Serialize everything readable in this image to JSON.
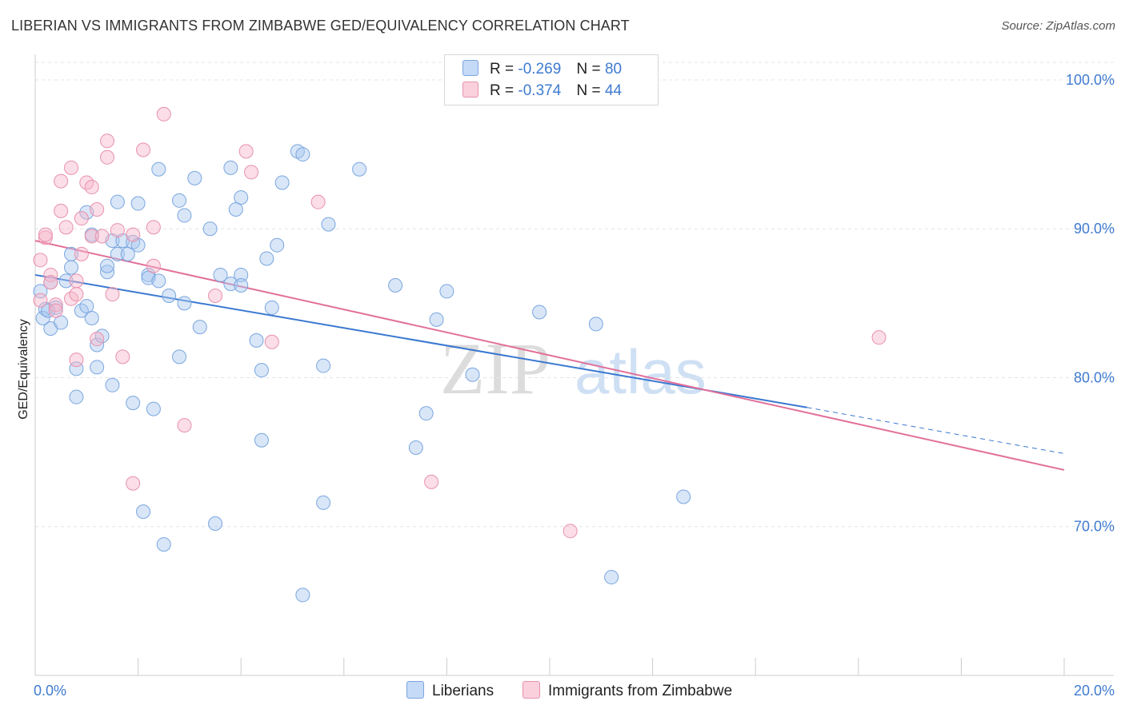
{
  "header": {
    "title": "LIBERIAN VS IMMIGRANTS FROM ZIMBABWE GED/EQUIVALENCY CORRELATION CHART",
    "source": "Source: ZipAtlas.com"
  },
  "watermark": {
    "zip": "ZIP",
    "atlas": "atlas"
  },
  "legend_top": [
    {
      "r_label": "R =",
      "r_value": "-0.269",
      "n_label": "N =",
      "n_value": "80",
      "color": "#a9c8f0"
    },
    {
      "r_label": "R =",
      "r_value": "-0.374",
      "n_label": "N =",
      "n_value": "44",
      "color": "#f6b6c9"
    }
  ],
  "legend_bottom": [
    {
      "label": "Liberians",
      "color": "#a9c8f0"
    },
    {
      "label": "Immigrants from Zimbabwe",
      "color": "#f6b6c9"
    }
  ],
  "chart_data": {
    "type": "scatter",
    "title": "LIBERIAN VS IMMIGRANTS FROM ZIMBABWE GED/EQUIVALENCY CORRELATION CHART",
    "ylabel": "GED/Equivalency",
    "xlabel": "",
    "xlim": [
      0,
      20
    ],
    "ylim": [
      60,
      101.5
    ],
    "x_tick_labels": [
      "0.0%",
      "20.0%"
    ],
    "y_ticks": [
      70,
      80,
      90,
      100
    ],
    "y_tick_labels": [
      "70.0%",
      "80.0%",
      "90.0%",
      "100.0%"
    ],
    "grid": true,
    "series": [
      {
        "name": "Liberians",
        "color": "#a9c8f0",
        "stroke": "#7aa6de",
        "trend": {
          "x0": 0,
          "y0": 86.9,
          "x1": 15,
          "y1": 78.0,
          "dash_to_x": 20,
          "dash_to_y": 74.9,
          "color": "#3a78d0"
        },
        "points": [
          [
            0.1,
            85.8
          ],
          [
            0.2,
            84.6
          ],
          [
            0.3,
            86.4
          ],
          [
            0.3,
            83.3
          ],
          [
            0.4,
            84.7
          ],
          [
            0.5,
            83.7
          ],
          [
            0.6,
            86.5
          ],
          [
            0.7,
            87.4
          ],
          [
            0.7,
            88.3
          ],
          [
            0.8,
            80.6
          ],
          [
            0.8,
            78.7
          ],
          [
            0.9,
            84.5
          ],
          [
            1.0,
            84.8
          ],
          [
            1.0,
            91.1
          ],
          [
            1.1,
            84.0
          ],
          [
            1.1,
            89.6
          ],
          [
            1.2,
            80.7
          ],
          [
            1.2,
            82.2
          ],
          [
            1.3,
            82.8
          ],
          [
            1.4,
            87.1
          ],
          [
            1.4,
            87.5
          ],
          [
            1.5,
            89.2
          ],
          [
            1.5,
            79.5
          ],
          [
            1.6,
            91.8
          ],
          [
            1.6,
            88.3
          ],
          [
            1.7,
            89.2
          ],
          [
            1.8,
            88.3
          ],
          [
            1.9,
            89.1
          ],
          [
            1.9,
            78.3
          ],
          [
            2.0,
            88.9
          ],
          [
            2.0,
            91.7
          ],
          [
            2.1,
            71.0
          ],
          [
            2.2,
            86.9
          ],
          [
            2.2,
            86.7
          ],
          [
            2.3,
            77.9
          ],
          [
            2.4,
            86.5
          ],
          [
            2.4,
            94.0
          ],
          [
            2.5,
            68.8
          ],
          [
            2.6,
            85.5
          ],
          [
            2.8,
            91.9
          ],
          [
            2.8,
            81.4
          ],
          [
            2.9,
            85.0
          ],
          [
            2.9,
            90.9
          ],
          [
            3.1,
            93.4
          ],
          [
            3.2,
            83.4
          ],
          [
            3.4,
            90.0
          ],
          [
            3.5,
            70.2
          ],
          [
            3.6,
            86.9
          ],
          [
            3.8,
            86.3
          ],
          [
            3.8,
            94.1
          ],
          [
            3.9,
            91.3
          ],
          [
            4.0,
            92.1
          ],
          [
            4.0,
            86.9
          ],
          [
            4.0,
            86.2
          ],
          [
            4.3,
            82.5
          ],
          [
            4.4,
            80.5
          ],
          [
            4.4,
            75.8
          ],
          [
            4.5,
            88.0
          ],
          [
            4.6,
            84.7
          ],
          [
            4.7,
            88.9
          ],
          [
            4.8,
            93.1
          ],
          [
            5.1,
            95.2
          ],
          [
            5.2,
            95.0
          ],
          [
            5.2,
            65.4
          ],
          [
            5.6,
            71.6
          ],
          [
            5.6,
            80.8
          ],
          [
            5.7,
            90.3
          ],
          [
            6.3,
            94.0
          ],
          [
            7.0,
            86.2
          ],
          [
            7.4,
            75.3
          ],
          [
            7.6,
            77.6
          ],
          [
            7.8,
            83.9
          ],
          [
            8.0,
            85.8
          ],
          [
            8.5,
            80.2
          ],
          [
            9.8,
            84.4
          ],
          [
            10.9,
            83.6
          ],
          [
            11.2,
            66.6
          ],
          [
            12.6,
            72.0
          ],
          [
            0.15,
            84.0
          ],
          [
            0.25,
            84.5
          ]
        ]
      },
      {
        "name": "Immigrants from Zimbabwe",
        "color": "#f6b6c9",
        "stroke": "#e891ad",
        "trend": {
          "x0": 0,
          "y0": 89.2,
          "x1": 20,
          "y1": 73.8,
          "color": "#e2709a"
        },
        "points": [
          [
            0.1,
            85.2
          ],
          [
            0.1,
            87.9
          ],
          [
            0.2,
            89.4
          ],
          [
            0.2,
            89.6
          ],
          [
            0.3,
            86.9
          ],
          [
            0.3,
            86.4
          ],
          [
            0.4,
            84.9
          ],
          [
            0.4,
            84.5
          ],
          [
            0.5,
            91.2
          ],
          [
            0.5,
            93.2
          ],
          [
            0.6,
            90.1
          ],
          [
            0.7,
            94.1
          ],
          [
            0.7,
            85.3
          ],
          [
            0.8,
            85.6
          ],
          [
            0.8,
            86.5
          ],
          [
            0.8,
            81.2
          ],
          [
            0.9,
            88.3
          ],
          [
            0.9,
            90.7
          ],
          [
            1.0,
            93.1
          ],
          [
            1.1,
            89.5
          ],
          [
            1.1,
            92.8
          ],
          [
            1.2,
            91.3
          ],
          [
            1.2,
            82.6
          ],
          [
            1.3,
            89.5
          ],
          [
            1.4,
            94.8
          ],
          [
            1.4,
            95.9
          ],
          [
            1.5,
            85.6
          ],
          [
            1.6,
            89.9
          ],
          [
            1.7,
            81.4
          ],
          [
            1.9,
            89.6
          ],
          [
            1.9,
            72.9
          ],
          [
            2.1,
            95.3
          ],
          [
            2.3,
            87.5
          ],
          [
            2.3,
            90.1
          ],
          [
            2.5,
            97.7
          ],
          [
            2.9,
            76.8
          ],
          [
            3.5,
            85.5
          ],
          [
            4.1,
            95.2
          ],
          [
            4.2,
            93.8
          ],
          [
            4.6,
            82.4
          ],
          [
            5.5,
            91.8
          ],
          [
            7.7,
            73.0
          ],
          [
            10.4,
            69.7
          ],
          [
            16.4,
            82.7
          ]
        ]
      }
    ]
  }
}
